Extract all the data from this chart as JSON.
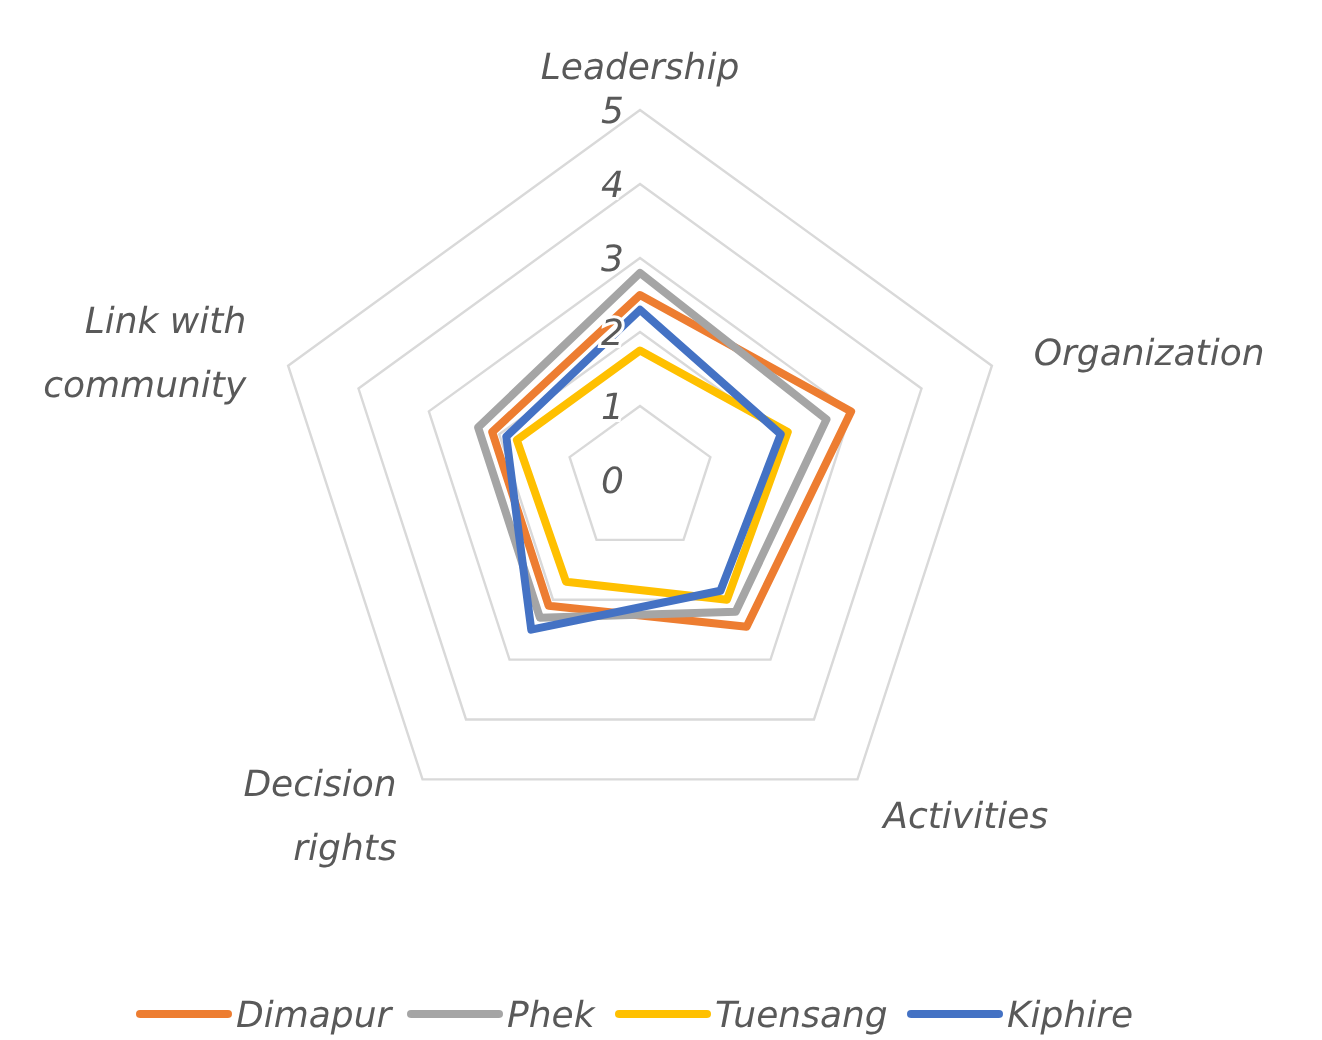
{
  "chart_data": {
    "type": "radar",
    "categories": [
      "Leadership",
      "Organization",
      "Activities",
      "Decision rights",
      "Link with community"
    ],
    "series": [
      {
        "name": "Dimapur",
        "color": "#ed7d31",
        "values": [
          2.5,
          3.0,
          2.45,
          2.1,
          2.1
        ]
      },
      {
        "name": "Phek",
        "color": "#a5a5a5",
        "values": [
          2.8,
          2.65,
          2.2,
          2.3,
          2.3
        ]
      },
      {
        "name": "Tuensang",
        "color": "#ffc000",
        "values": [
          1.75,
          2.1,
          2.0,
          1.7,
          1.75
        ]
      },
      {
        "name": "Kiphire",
        "color": "#4472c4",
        "values": [
          2.3,
          2.0,
          1.85,
          2.5,
          1.9
        ]
      }
    ],
    "ylim": [
      0,
      5
    ],
    "yticks": [
      0,
      1,
      2,
      3,
      4,
      5
    ],
    "grid": true,
    "legend": "bottom"
  }
}
